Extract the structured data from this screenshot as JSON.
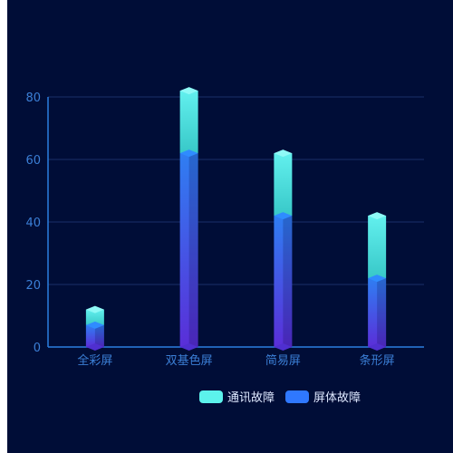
{
  "chart_data": {
    "type": "bar",
    "stacked": true,
    "categories": [
      "全彩屏",
      "双基色屏",
      "简易屏",
      "条形屏"
    ],
    "series": [
      {
        "name": "屏体故障",
        "values": [
          7,
          62,
          42,
          22
        ],
        "color": "#2f78ff"
      },
      {
        "name": "通讯故障",
        "values": [
          5,
          20,
          20,
          20
        ],
        "color": "#5cf2ec"
      }
    ],
    "yticks": [
      0,
      20,
      40,
      60,
      80
    ],
    "ylim": [
      0,
      80
    ],
    "grid": true,
    "legend_position": "bottom-right",
    "colors": {
      "background": "#000d37",
      "axis": "#2a7fe0",
      "grid": "#1a2f6a",
      "tick_text": "#3b7fd6",
      "legend_text": "#dfe8ff"
    }
  }
}
